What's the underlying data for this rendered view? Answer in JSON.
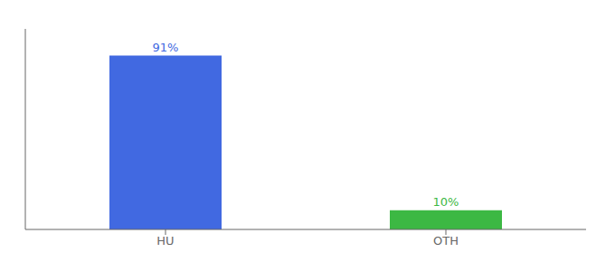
{
  "chart_data": {
    "type": "bar",
    "categories": [
      "HU",
      "OTH"
    ],
    "values": [
      91,
      10
    ],
    "value_labels": [
      "91%",
      "10%"
    ],
    "data_labels": true,
    "colors": [
      "#4169e1",
      "#3cb843"
    ],
    "ylim": [
      0,
      105
    ],
    "tick_labels": "x",
    "grid": false
  }
}
